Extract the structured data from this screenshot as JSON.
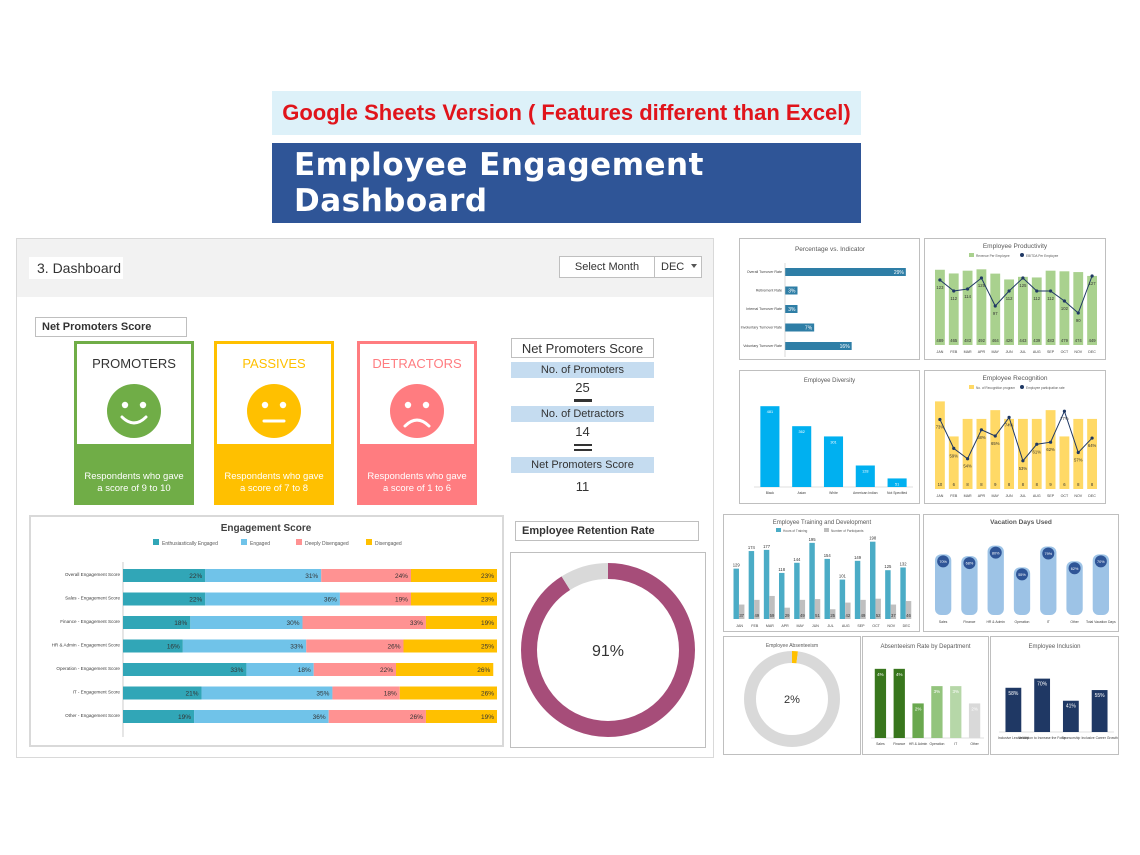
{
  "banner_subtitle": "Google Sheets Version ( Features different than Excel)",
  "banner_title": "Employee Engagement Dashboard",
  "dashboard": {
    "tab_title": "3. Dashboard",
    "select_month_label": "Select Month",
    "selected_month": "DEC"
  },
  "nps": {
    "section_label": "Net Promoters Score",
    "cards": [
      {
        "name": "PROMOTERS",
        "desc": "Respondents who gave a score of 9 to 10",
        "color": "#70ad47",
        "face": "happy"
      },
      {
        "name": "PASSIVES",
        "desc": "Respondents who gave a score of 7 to 8",
        "color": "#ffc000",
        "face": "neutral"
      },
      {
        "name": "DETRACTORS",
        "desc": "Respondents who gave a score of 1 to 6",
        "color": "#ff7c80",
        "face": "sad"
      }
    ],
    "box_title": "Net Promoters Score",
    "promoters_label": "No. of Promoters",
    "promoters_value": "25",
    "detractors_label": "No. of Detractors",
    "detractors_value": "14",
    "score_label": "Net Promoters Score",
    "score_value": "11"
  },
  "retention": {
    "title": "Employee Retention Rate",
    "value_label": "91%"
  },
  "chart_data": [
    {
      "type": "bar",
      "orientation": "horizontal-stacked",
      "title": "Engagement Score",
      "legend": [
        "Enthusiastically Engaged",
        "Engaged",
        "Deeply Disengaged",
        "Disengaged"
      ],
      "colors": [
        "#31a6b7",
        "#70c3e9",
        "#ff9292",
        "#ffc000"
      ],
      "categories": [
        "Overall Engagement Score",
        "Sales - Engagement Score",
        "Finance - Engagement Score",
        "HR & Admin - Engagement Score",
        "Operation - Engagement Score",
        "IT - Engagement Score",
        "Other - Engagement Score"
      ],
      "series": [
        {
          "name": "Enthusiastically Engaged",
          "values": [
            22,
            22,
            18,
            16,
            33,
            21,
            19
          ]
        },
        {
          "name": "Engaged",
          "values": [
            31,
            36,
            30,
            33,
            18,
            35,
            36
          ]
        },
        {
          "name": "Deeply Disengaged",
          "values": [
            24,
            19,
            33,
            26,
            22,
            18,
            26
          ]
        },
        {
          "name": "Disengaged",
          "values": [
            23,
            23,
            19,
            25,
            26,
            26,
            19
          ]
        }
      ]
    },
    {
      "type": "pie",
      "title": "Employee Retention Rate",
      "values": [
        91,
        9
      ],
      "colors": [
        "#a64d79",
        "#d9d9d9"
      ]
    },
    {
      "type": "bar",
      "orientation": "horizontal",
      "title": "Percentage vs. Indicator",
      "categories": [
        "Overall Turnover Rate",
        "Retirement Rate",
        "Internal Turnover Rate",
        "Involuntary Turnover Rate",
        "Voluntary Turnover Rate"
      ],
      "values": [
        29,
        3,
        3,
        7,
        16
      ],
      "color": "#2e7ea6"
    },
    {
      "type": "bar",
      "title": "Employee Productivity",
      "legend": [
        "Revenue Per Employee",
        "EBITDA Per Employee"
      ],
      "categories": [
        "JAN",
        "FEB",
        "MAR",
        "APR",
        "MAY",
        "JUN",
        "JUL",
        "AUG",
        "SEP",
        "OCT",
        "NOV",
        "DEC"
      ],
      "bar_values": [
        489,
        465,
        483,
        492,
        464,
        426,
        443,
        439,
        483,
        479,
        474,
        449
      ],
      "line_values": [
        123,
        112,
        114,
        125,
        97,
        112,
        125,
        112,
        112,
        102,
        90,
        127
      ],
      "bar_color": "#a9d18e",
      "line_color": "#1f3864"
    },
    {
      "type": "bar",
      "title": "Employee Diversity",
      "categories": [
        "Black",
        "Asian",
        "White",
        "American Indian",
        "Not Specified"
      ],
      "values": [
        481,
        362,
        301,
        128,
        51
      ],
      "color": "#00b0f0"
    },
    {
      "type": "bar",
      "title": "Employee Recognition",
      "legend": [
        "No. of Recognition program",
        "Employee participation rate"
      ],
      "categories": [
        "JAN",
        "FEB",
        "MAR",
        "APR",
        "MAY",
        "JUN",
        "JUL",
        "AUG",
        "SEP",
        "OCT",
        "NOV",
        "DEC"
      ],
      "bar_values": [
        10,
        6,
        8,
        8,
        9,
        8,
        8,
        8,
        9,
        6,
        8,
        8
      ],
      "line_values": [
        73,
        59,
        54,
        68,
        65,
        74,
        53,
        61,
        62,
        77,
        57,
        64
      ],
      "line_labels": [
        "73%",
        "59%",
        "54%",
        "68%",
        "65%",
        "74%",
        "53%",
        "61%",
        "62%",
        "77%",
        "57%",
        "64%"
      ],
      "bar_color": "#ffd966",
      "line_color": "#1f3864"
    },
    {
      "type": "bar",
      "title": "Employee Training and Development",
      "legend": [
        "Hours of Training",
        "Number of Participants"
      ],
      "categories": [
        "JAN",
        "FEB",
        "MAR",
        "APR",
        "MAY",
        "JUN",
        "JUL",
        "AUG",
        "SEP",
        "OCT",
        "NOV",
        "DEC"
      ],
      "series": [
        {
          "name": "Hours of Training",
          "values": [
            129,
            174,
            177,
            118,
            144,
            195,
            154,
            101,
            149,
            198,
            125,
            132
          ]
        },
        {
          "name": "Number of Participants",
          "values": [
            37,
            49,
            59,
            29,
            49,
            51,
            25,
            42,
            49,
            52,
            37,
            46
          ]
        }
      ],
      "colors": [
        "#4bacc6",
        "#bfbfbf"
      ]
    },
    {
      "type": "bar",
      "title": "Vacation Days Used",
      "categories": [
        "Sales",
        "Finance",
        "HR & Admin",
        "Operation",
        "IT",
        "Other",
        "Total Vacation Days"
      ],
      "values": [
        70,
        68,
        80,
        55,
        79,
        62,
        70
      ],
      "labels": [
        "70%",
        "68%",
        "80%",
        "55%",
        "79%",
        "62%",
        "70%"
      ],
      "color": "#9dc3e6"
    },
    {
      "type": "pie",
      "title": "Employee Absenteeism",
      "values": [
        2,
        98
      ],
      "value_label": "2%",
      "colors": [
        "#ffc000",
        "#d9d9d9"
      ]
    },
    {
      "type": "bar",
      "title": "Absenteeism Rate by Department",
      "categories": [
        "Sales",
        "Finance",
        "HR & Admin",
        "Operation",
        "IT",
        "Other"
      ],
      "values": [
        4,
        4,
        2,
        3,
        3,
        2
      ],
      "labels": [
        "4%",
        "4%",
        "2%",
        "3%",
        "3%",
        "2%"
      ],
      "colors": [
        "#38761d",
        "#38761d",
        "#6aa84f",
        "#93c47d",
        "#b6d7a8",
        "#d9d9d9"
      ]
    },
    {
      "type": "bar",
      "title": "Employee Inclusion",
      "categories": [
        "Inclusive Leadership",
        "Validation to Increase the Force",
        "Sponsorship",
        "Inclusive Career Growth"
      ],
      "values": [
        58,
        70,
        41,
        55
      ],
      "labels": [
        "58%",
        "70%",
        "41%",
        "55%"
      ],
      "color": "#1f3864"
    }
  ]
}
